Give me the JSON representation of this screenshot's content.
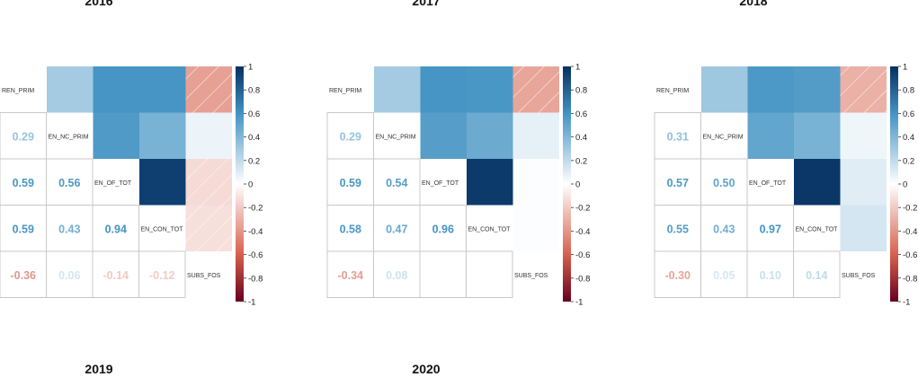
{
  "chart_data": [
    {
      "type": "heatmap",
      "title": "2016",
      "variables": [
        "REN_PRIM",
        "EN_NC_PRIM",
        "EN_OF_TOT",
        "EN_CON_TOT",
        "SUBS_FOS"
      ],
      "matrix": [
        [
          1,
          0.29,
          0.59,
          0.59,
          -0.36
        ],
        [
          0.29,
          1,
          0.56,
          0.43,
          0.06
        ],
        [
          0.59,
          0.56,
          1,
          0.94,
          -0.14
        ],
        [
          0.59,
          0.43,
          0.94,
          1,
          -0.12
        ],
        [
          -0.36,
          0.06,
          -0.14,
          -0.12,
          1
        ]
      ],
      "lower_labels": [
        [
          "0.29"
        ],
        [
          "0.59",
          "0.56"
        ],
        [
          "0.59",
          "0.43",
          "0.94"
        ],
        [
          "-0.36",
          "0.06",
          "-0.14",
          "-0.12"
        ]
      ]
    },
    {
      "type": "heatmap",
      "title": "2017",
      "variables": [
        "REN_PRIM",
        "EN_NC_PRIM",
        "EN_OF_TOT",
        "EN_CON_TOT",
        "SUBS_FOS"
      ],
      "matrix": [
        [
          1,
          0.29,
          0.59,
          0.58,
          -0.34
        ],
        [
          0.29,
          1,
          0.54,
          0.47,
          0.08
        ],
        [
          0.59,
          0.54,
          1,
          0.96,
          0.01
        ],
        [
          0.58,
          0.47,
          0.96,
          1,
          0.01
        ],
        [
          -0.34,
          0.08,
          0.01,
          0.01,
          1
        ]
      ],
      "lower_labels": [
        [
          "0.29"
        ],
        [
          "0.59",
          "0.54"
        ],
        [
          "0.58",
          "0.47",
          "0.96"
        ],
        [
          "-0.34",
          "0.08",
          "",
          ""
        ]
      ]
    },
    {
      "type": "heatmap",
      "title": "2018",
      "variables": [
        "REN_PRIM",
        "EN_NC_PRIM",
        "EN_OF_TOT",
        "EN_CON_TOT",
        "SUBS_FOS"
      ],
      "matrix": [
        [
          1,
          0.31,
          0.57,
          0.55,
          -0.3
        ],
        [
          0.31,
          1,
          0.5,
          0.43,
          0.05
        ],
        [
          0.57,
          0.5,
          1,
          0.97,
          0.1
        ],
        [
          0.55,
          0.43,
          0.97,
          1,
          0.14
        ],
        [
          -0.3,
          0.05,
          0.1,
          0.14,
          1
        ]
      ],
      "lower_labels": [
        [
          "0.31"
        ],
        [
          "0.57",
          "0.50"
        ],
        [
          "0.55",
          "0.43",
          "0.97"
        ],
        [
          "-0.30",
          "0.05",
          "0.10",
          "0.14"
        ]
      ]
    },
    {
      "type": "heatmap",
      "title": "2019",
      "variables": [],
      "matrix": [],
      "lower_labels": []
    },
    {
      "type": "heatmap",
      "title": "2020",
      "variables": [],
      "matrix": [],
      "lower_labels": []
    }
  ],
  "colorbar": {
    "range": [
      -1,
      1
    ],
    "ticks": [
      "1",
      "0.8",
      "0.6",
      "0.4",
      "0.2",
      "0",
      "-0.2",
      "-0.4",
      "-0.6",
      "-0.8",
      "-1"
    ],
    "colors": {
      "neg_end": "#67001f",
      "neg_mid": "#d6604d",
      "zero": "#ffffff",
      "pos_mid": "#4393c3",
      "pos_end": "#053061"
    }
  }
}
